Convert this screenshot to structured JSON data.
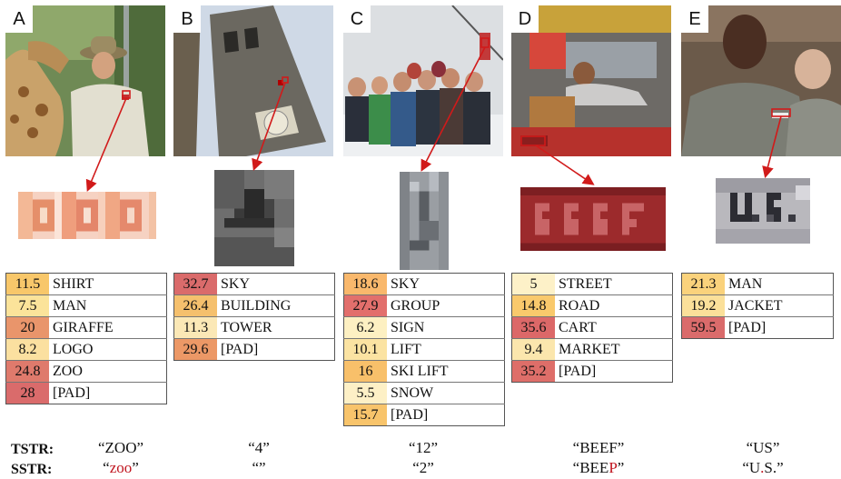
{
  "panels": [
    {
      "letter": "A",
      "rows": [
        {
          "score": "11.5",
          "label": "SHIRT",
          "color": "#f8c76a"
        },
        {
          "score": "7.5",
          "label": "MAN",
          "color": "#fbe39a"
        },
        {
          "score": "20",
          "label": "GIRAFFE",
          "color": "#e9956b"
        },
        {
          "score": "8.2",
          "label": "LOGO",
          "color": "#fbe0a0"
        },
        {
          "score": "24.8",
          "label": "ZOO",
          "color": "#df7a6c"
        },
        {
          "score": "28",
          "label": "[PAD]",
          "color": "#da6b6b"
        }
      ]
    },
    {
      "letter": "B",
      "rows": [
        {
          "score": "32.7",
          "label": "SKY",
          "color": "#da6b6b"
        },
        {
          "score": "26.4",
          "label": "BUILDING",
          "color": "#f5c06d"
        },
        {
          "score": "11.3",
          "label": "TOWER",
          "color": "#fbe8b6"
        },
        {
          "score": "29.6",
          "label": "[PAD]",
          "color": "#ec9866"
        }
      ]
    },
    {
      "letter": "C",
      "rows": [
        {
          "score": "18.6",
          "label": "SKY",
          "color": "#f9b86c"
        },
        {
          "score": "27.9",
          "label": "GROUP",
          "color": "#e26f6c"
        },
        {
          "score": "6.2",
          "label": "SIGN",
          "color": "#fdf0c2"
        },
        {
          "score": "10.1",
          "label": "LIFT",
          "color": "#fbe3a2"
        },
        {
          "score": "16",
          "label": "SKI LIFT",
          "color": "#f8c06a"
        },
        {
          "score": "5.5",
          "label": "SNOW",
          "color": "#fdf0c6"
        },
        {
          "score": "15.7",
          "label": "[PAD]",
          "color": "#f8c46b"
        }
      ]
    },
    {
      "letter": "D",
      "rows": [
        {
          "score": "5",
          "label": "STREET",
          "color": "#fdf1c8"
        },
        {
          "score": "14.8",
          "label": "ROAD",
          "color": "#f9c96c"
        },
        {
          "score": "35.6",
          "label": "CART",
          "color": "#dc6868"
        },
        {
          "score": "9.4",
          "label": "MARKET",
          "color": "#fbe6ad"
        },
        {
          "score": "35.2",
          "label": "[PAD]",
          "color": "#de6e69"
        }
      ]
    },
    {
      "letter": "E",
      "rows": [
        {
          "score": "21.3",
          "label": "MAN",
          "color": "#fad27c"
        },
        {
          "score": "19.2",
          "label": "JACKET",
          "color": "#fbe09a"
        },
        {
          "score": "59.5",
          "label": "[PAD]",
          "color": "#da6b6b"
        }
      ]
    }
  ],
  "predictions": {
    "tstr_label": "TSTR:",
    "sstr_label": "SSTR:",
    "tstr": [
      "“ZOO”",
      "“4”",
      "“12”",
      "“BEEF”",
      "“US”"
    ],
    "sstr": [
      {
        "pre": "“",
        "red": "zoo",
        "post": "”"
      },
      {
        "pre": "“”",
        "red": "",
        "post": ""
      },
      {
        "pre": "“2”",
        "red": "",
        "post": ""
      },
      {
        "pre": "“BEE",
        "red": "P",
        "post": "”"
      },
      {
        "pre": "“U",
        "red": ".",
        "post": "S.”"
      }
    ]
  }
}
